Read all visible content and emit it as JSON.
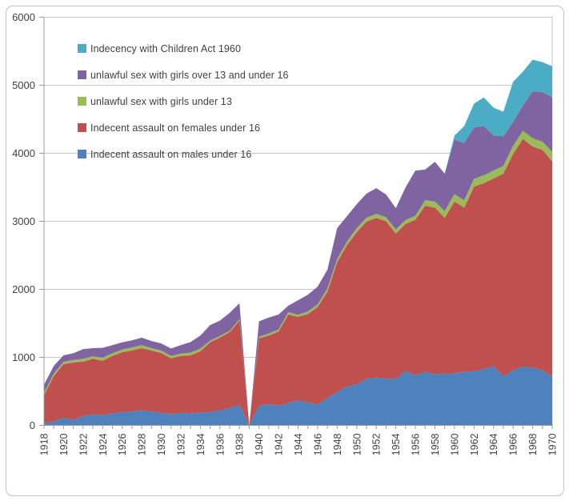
{
  "chart_frame": {
    "background": "#ffffff",
    "frame_border_color": "#c3c3c3",
    "plot_border_color": "#c6c6c6",
    "gridline_color": "#c6c6c6",
    "axis_line_color": "#9c9c9c",
    "tick_color": "#9c9c9c",
    "text_color": "#404040"
  },
  "chart_data": {
    "type": "area",
    "stacking": "stacked",
    "title": "",
    "xlabel": "",
    "ylabel": "",
    "grid": true,
    "ylim": [
      0,
      6000
    ],
    "y_ticks": [
      0,
      1000,
      2000,
      3000,
      4000,
      5000,
      6000
    ],
    "x_tick_label_step": 2,
    "legend_position": "top-left-inside",
    "x": [
      1918,
      1919,
      1920,
      1921,
      1922,
      1923,
      1924,
      1925,
      1926,
      1927,
      1928,
      1929,
      1930,
      1931,
      1932,
      1933,
      1934,
      1935,
      1936,
      1937,
      1938,
      1939,
      1940,
      1941,
      1942,
      1943,
      1944,
      1945,
      1946,
      1947,
      1948,
      1949,
      1950,
      1951,
      1952,
      1953,
      1954,
      1955,
      1956,
      1957,
      1958,
      1959,
      1960,
      1961,
      1962,
      1963,
      1964,
      1965,
      1966,
      1967,
      1968,
      1969,
      1970
    ],
    "series": [
      {
        "name": "Indecent assault on males under 16",
        "color": "#4F81BD",
        "values": [
          35,
          55,
          115,
          80,
          135,
          160,
          150,
          175,
          195,
          205,
          220,
          205,
          185,
          165,
          185,
          175,
          190,
          195,
          220,
          255,
          305,
          0,
          290,
          310,
          290,
          330,
          370,
          335,
          310,
          405,
          490,
          570,
          605,
          685,
          705,
          685,
          690,
          800,
          740,
          790,
          755,
          760,
          765,
          790,
          795,
          825,
          875,
          720,
          810,
          865,
          850,
          810,
          720
        ]
      },
      {
        "name": "Indecent assault on females under 16",
        "color": "#C0504D",
        "values": [
          410,
          670,
          785,
          845,
          800,
          820,
          800,
          845,
          880,
          895,
          915,
          895,
          880,
          820,
          835,
          855,
          900,
          1025,
          1070,
          1115,
          1235,
          0,
          990,
          1010,
          1090,
          1300,
          1225,
          1300,
          1430,
          1560,
          1910,
          2080,
          2235,
          2310,
          2345,
          2315,
          2130,
          2160,
          2280,
          2440,
          2445,
          2290,
          2525,
          2410,
          2715,
          2735,
          2755,
          2980,
          3180,
          3345,
          3250,
          3240,
          3160
        ]
      },
      {
        "name": "unlawful sex with girls under 13",
        "color": "#9BBB59",
        "values": [
          35,
          35,
          35,
          35,
          45,
          35,
          45,
          40,
          40,
          45,
          45,
          35,
          35,
          35,
          35,
          40,
          40,
          25,
          25,
          20,
          20,
          0,
          25,
          30,
          30,
          35,
          30,
          40,
          40,
          50,
          50,
          50,
          60,
          58,
          60,
          60,
          60,
          60,
          60,
          80,
          90,
          100,
          110,
          110,
          115,
          115,
          115,
          115,
          120,
          120,
          120,
          120,
          140
        ]
      },
      {
        "name": "unlawful sex with girls over 13 and under 16",
        "color": "#8064A2",
        "values": [
          115,
          115,
          95,
          100,
          140,
          120,
          145,
          120,
          105,
          105,
          110,
          105,
          105,
          110,
          125,
          155,
          190,
          230,
          225,
          265,
          235,
          0,
          225,
          235,
          220,
          95,
          215,
          245,
          260,
          275,
          450,
          375,
          352,
          355,
          377,
          334,
          313,
          480,
          665,
          450,
          585,
          550,
          800,
          840,
          755,
          725,
          515,
          435,
          350,
          370,
          690,
          730,
          800
        ]
      },
      {
        "name": "Indecency with Children Act 1960",
        "color": "#4BACC6",
        "values": [
          0,
          0,
          0,
          0,
          0,
          0,
          0,
          0,
          0,
          0,
          0,
          0,
          0,
          0,
          0,
          0,
          0,
          0,
          0,
          0,
          0,
          0,
          0,
          0,
          0,
          0,
          0,
          0,
          0,
          0,
          0,
          0,
          0,
          0,
          0,
          0,
          0,
          0,
          0,
          0,
          0,
          0,
          60,
          250,
          350,
          420,
          410,
          360,
          590,
          500,
          465,
          440,
          460
        ]
      }
    ],
    "legend_order_top_to_bottom": [
      4,
      3,
      2,
      1,
      0
    ]
  }
}
